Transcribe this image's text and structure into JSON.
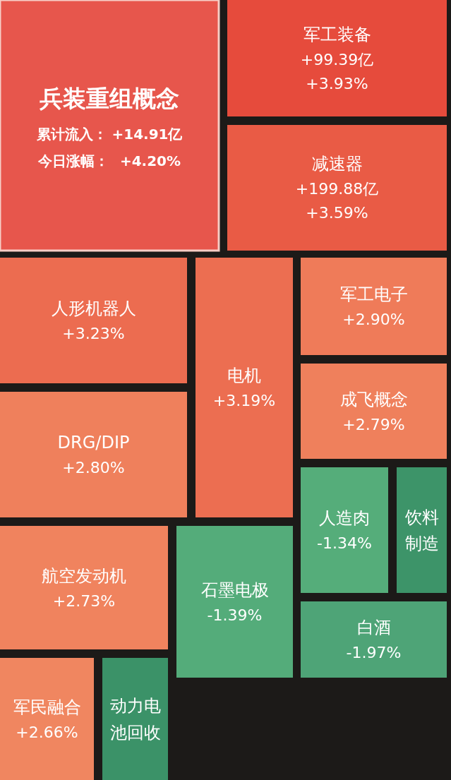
{
  "chart_data": {
    "type": "other",
    "categories": [
      "兵装重组概念",
      "军工装备",
      "减速器",
      "人形机器人",
      "电机",
      "军工电子",
      "成飞概念",
      "DRG/DIP",
      "人造肉",
      "饮料制造",
      "航空发动机",
      "石墨电极",
      "白酒",
      "军民融合",
      "动力电池回收"
    ],
    "values": [
      4.2,
      3.93,
      3.59,
      3.23,
      3.19,
      2.9,
      2.79,
      2.8,
      -1.34,
      null,
      2.73,
      -1.39,
      -1.97,
      2.66,
      null
    ],
    "annotations": [
      "累计流入：  +14.91亿",
      "今日涨幅："
    ],
    "value_labels": [
      "+4.20%",
      "+99.39亿\n+3.93%",
      "+199.88亿\n+3.59%",
      "+3.23%",
      "+3.19%",
      "+2.90%",
      "+2.79%",
      "+2.80%",
      "-1.34%",
      null,
      "+2.73%",
      "-1.39%",
      "-1.97%",
      "+2.66%",
      null
    ],
    "colors": [
      null,
      null,
      null,
      null,
      null,
      null,
      null,
      null,
      null,
      "#3d9469",
      null,
      null,
      null,
      null,
      "#3b9268"
    ]
  }
}
